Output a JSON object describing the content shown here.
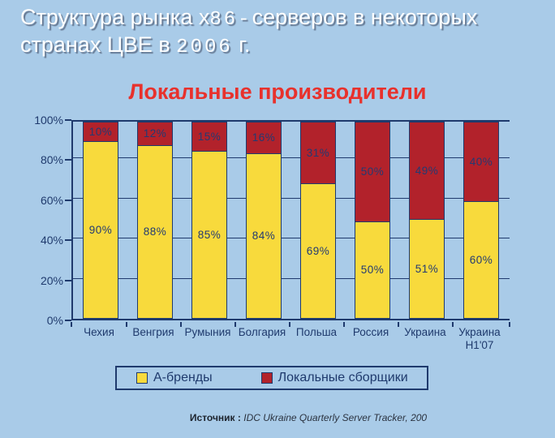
{
  "header": {
    "line1_pre": "Структура рынка х",
    "line1_mono": "86-",
    "line1_post": "серверов в некоторых",
    "line2_pre": "странах ЦВЕ в ",
    "line2_mono": "2006",
    "line2_post": " г."
  },
  "chart_data": {
    "type": "bar",
    "stacked": true,
    "title": "Локальные производители",
    "categories": [
      "Чехия",
      "Венгрия",
      "Румыния",
      "Болгария",
      "Польша",
      "Россия",
      "Украина",
      "Украина\nH1'07"
    ],
    "series": [
      {
        "name": "А-бренды",
        "color": "#f8da3c",
        "values": [
          90,
          88,
          85,
          84,
          69,
          50,
          51,
          60
        ]
      },
      {
        "name": "Локальные сборщики",
        "color": "#b2222b",
        "values": [
          10,
          12,
          15,
          16,
          31,
          50,
          49,
          40
        ]
      }
    ],
    "xlabel": "",
    "ylabel": "",
    "ylim": [
      0,
      100
    ],
    "ytick_step": 20,
    "ytick_suffix": "%",
    "grid": true,
    "legend_position": "bottom",
    "data_labels": "percent",
    "label_color": "#233a72",
    "axis_color": "#1f3a6d"
  },
  "legend": {
    "items": [
      {
        "label": "А-бренды",
        "color": "#f8da3c"
      },
      {
        "label": "Локальные сборщики",
        "color": "#b2222b"
      }
    ]
  },
  "source": {
    "label": "Источник :",
    "text": "IDC Ukraine Quarterly Server Tracker, 200"
  },
  "colors": {
    "background": "#a9cbe8",
    "title_text": "#ffffff",
    "chart_title": "#e8312c",
    "navy": "#1f3a6d",
    "yellow": "#f8da3c",
    "red": "#b2222b"
  }
}
